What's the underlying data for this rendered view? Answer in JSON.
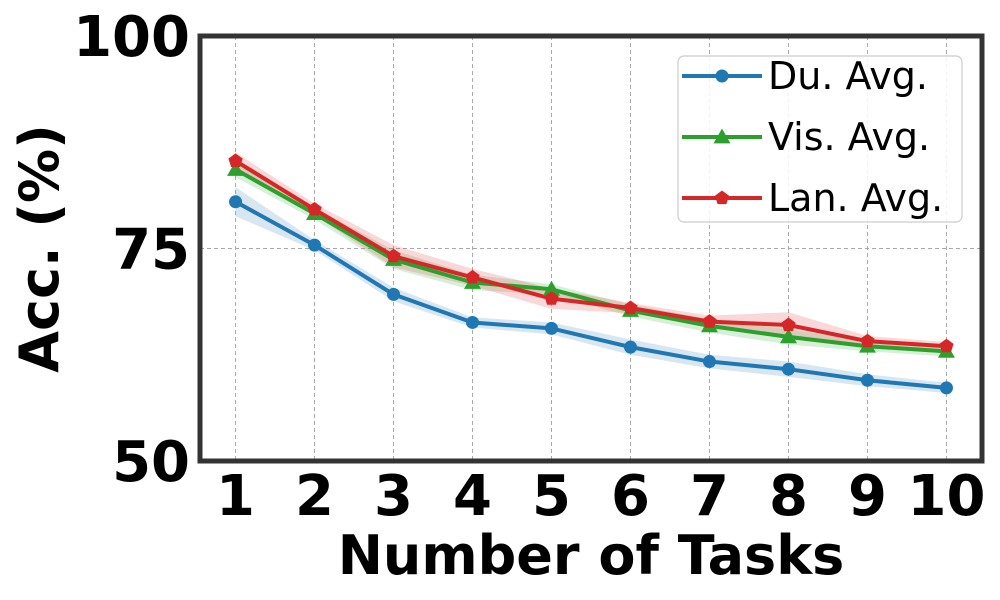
{
  "chart_data": {
    "type": "line",
    "xlabel": "Number of Tasks",
    "ylabel": "Acc. (%)",
    "categories": [
      "1",
      "2",
      "3",
      "4",
      "5",
      "6",
      "7",
      "8",
      "9",
      "10"
    ],
    "x": [
      1,
      2,
      3,
      4,
      5,
      6,
      7,
      8,
      9,
      10
    ],
    "ylim": [
      50,
      100
    ],
    "yticks": [
      "50",
      "75",
      "100"
    ],
    "grid": true,
    "legend_position": "top-right",
    "series": [
      {
        "name": "Du. Avg.",
        "color": "#1f77b4",
        "marker": "circle",
        "values": [
          80.5,
          75.4,
          69.6,
          66.3,
          65.6,
          63.4,
          61.7,
          60.8,
          59.5,
          58.6
        ],
        "band": [
          1.7,
          0.6,
          0.8,
          0.6,
          0.7,
          0.9,
          0.8,
          0.9,
          0.7,
          0.6
        ]
      },
      {
        "name": "Vis. Avg.",
        "color": "#2ca02c",
        "marker": "triangle",
        "values": [
          84.3,
          79.1,
          73.7,
          71.0,
          70.2,
          67.7,
          65.9,
          64.6,
          63.5,
          62.9
        ],
        "band": [
          0.9,
          0.7,
          1.1,
          0.9,
          0.6,
          0.7,
          0.8,
          0.9,
          0.6,
          0.6
        ]
      },
      {
        "name": "Lan. Avg.",
        "color": "#d62728",
        "marker": "pentagon",
        "values": [
          85.3,
          79.6,
          74.1,
          71.6,
          69.1,
          68.0,
          66.4,
          66.0,
          64.1,
          63.5
        ],
        "band": [
          1.0,
          0.7,
          1.3,
          1.0,
          1.2,
          0.6,
          0.7,
          1.5,
          0.6,
          0.5
        ]
      }
    ]
  }
}
